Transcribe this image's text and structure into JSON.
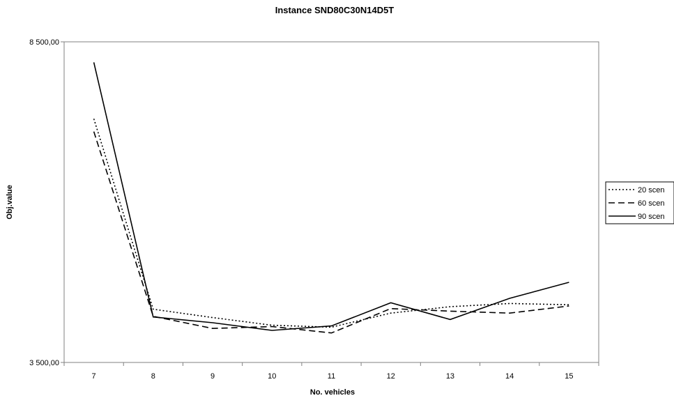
{
  "chart_data": {
    "type": "line",
    "title": "Instance SND80C30N14D5T",
    "xlabel": "No. vehicles",
    "ylabel": "Obj.value",
    "x": [
      7,
      8,
      9,
      10,
      11,
      12,
      13,
      14,
      15
    ],
    "ylim": [
      3500,
      8500
    ],
    "y_ticks": [
      "3 500,00",
      "8 500,00"
    ],
    "grid": false,
    "legend_position": "right",
    "series": [
      {
        "name": "20 scen",
        "style": "dotted",
        "color": "#000000",
        "values": [
          7300,
          4330,
          4200,
          4080,
          4050,
          4270,
          4370,
          4420,
          4400
        ]
      },
      {
        "name": "60 scen",
        "style": "dashed",
        "color": "#000000",
        "values": [
          7100,
          4220,
          4030,
          4060,
          3960,
          4340,
          4300,
          4270,
          4380
        ]
      },
      {
        "name": "90 scen",
        "style": "solid",
        "color": "#000000",
        "values": [
          8180,
          4210,
          4120,
          4000,
          4070,
          4430,
          4170,
          4500,
          4750
        ]
      }
    ]
  }
}
